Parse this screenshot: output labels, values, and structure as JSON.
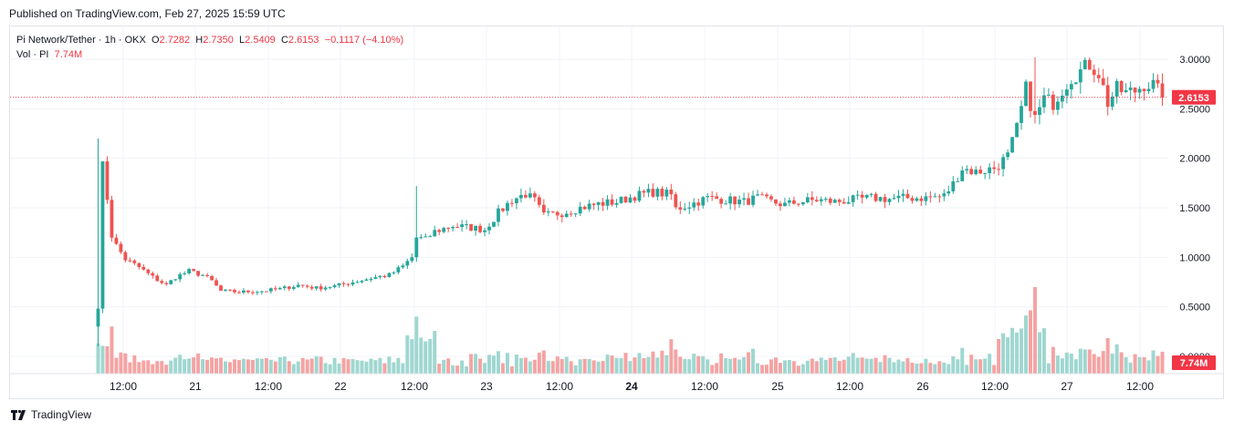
{
  "header": {
    "published": "Published on TradingView.com, Feb 27, 2025 15:59 UTC"
  },
  "legend": {
    "symbol": "Pi Network/Tether · 1h · OKX",
    "o_label": "O",
    "o_value": "2.7282",
    "h_label": "H",
    "h_value": "2.7350",
    "l_label": "L",
    "l_value": "2.5409",
    "c_label": "C",
    "c_value": "2.6153",
    "change": "−0.1117 (−4.10%)",
    "vol_label": "Vol · PI",
    "vol_value": "7.74M"
  },
  "footer": {
    "brand": "TradingView"
  },
  "colors": {
    "up": "#26a69a",
    "down": "#ef5350",
    "up_vol": "#9fd7d0",
    "down_vol": "#f5a3a3",
    "price_line": "#f23645"
  },
  "chart_data": {
    "type": "candlestick",
    "title": "Pi Network/Tether · 1h · OKX",
    "ylim": [
      0.0,
      3.2
    ],
    "y_ticks": [
      "3.0000",
      "2.5000",
      "2.0000",
      "1.5000",
      "1.0000",
      "0.5000",
      "0.0000"
    ],
    "y_tick_values": [
      3.0,
      2.5,
      2.0,
      1.5,
      1.0,
      0.5,
      0.0
    ],
    "x_ticks": [
      "12:00",
      "21",
      "12:00",
      "22",
      "12:00",
      "23",
      "12:00",
      "24",
      "12:00",
      "25",
      "12:00",
      "26",
      "12:00",
      "27",
      "12:00"
    ],
    "x_tick_bold": [
      "24"
    ],
    "last_price": 2.6153,
    "last_price_label": "2.6153",
    "last_volume_label": "7.74M",
    "closes_anchor": [
      [
        0,
        0.5
      ],
      [
        1,
        1.92
      ],
      [
        2,
        1.6
      ],
      [
        3,
        1.22
      ],
      [
        4,
        1.12
      ],
      [
        6,
        0.98
      ],
      [
        9,
        0.9
      ],
      [
        12,
        0.8
      ],
      [
        15,
        0.72
      ],
      [
        17,
        0.8
      ],
      [
        20,
        0.86
      ],
      [
        23,
        0.82
      ],
      [
        25,
        0.76
      ],
      [
        27,
        0.66
      ],
      [
        31,
        0.65
      ],
      [
        36,
        0.66
      ],
      [
        40,
        0.68
      ],
      [
        44,
        0.72
      ],
      [
        48,
        0.69
      ],
      [
        52,
        0.71
      ],
      [
        56,
        0.75
      ],
      [
        60,
        0.79
      ],
      [
        64,
        0.82
      ],
      [
        67,
        0.91
      ],
      [
        69,
        1.0
      ],
      [
        70,
        1.2
      ],
      [
        72,
        1.18
      ],
      [
        74,
        1.26
      ],
      [
        78,
        1.32
      ],
      [
        82,
        1.3
      ],
      [
        85,
        1.28
      ],
      [
        88,
        1.45
      ],
      [
        91,
        1.58
      ],
      [
        94,
        1.64
      ],
      [
        96,
        1.57
      ],
      [
        98,
        1.42
      ],
      [
        102,
        1.45
      ],
      [
        106,
        1.5
      ],
      [
        110,
        1.54
      ],
      [
        114,
        1.56
      ],
      [
        118,
        1.62
      ],
      [
        122,
        1.66
      ],
      [
        126,
        1.63
      ],
      [
        127,
        1.49
      ],
      [
        130,
        1.53
      ],
      [
        134,
        1.6
      ],
      [
        138,
        1.58
      ],
      [
        142,
        1.56
      ],
      [
        145,
        1.6
      ],
      [
        148,
        1.56
      ],
      [
        151,
        1.53
      ],
      [
        154,
        1.56
      ],
      [
        158,
        1.58
      ],
      [
        162,
        1.56
      ],
      [
        166,
        1.58
      ],
      [
        170,
        1.6
      ],
      [
        174,
        1.59
      ],
      [
        178,
        1.6
      ],
      [
        182,
        1.6
      ],
      [
        186,
        1.62
      ],
      [
        188,
        1.74
      ],
      [
        190,
        1.9
      ],
      [
        193,
        1.86
      ],
      [
        197,
        1.9
      ],
      [
        200,
        2.02
      ],
      [
        202,
        2.3
      ],
      [
        204,
        2.7
      ],
      [
        206,
        2.4
      ],
      [
        208,
        2.6
      ],
      [
        210,
        2.56
      ],
      [
        212,
        2.7
      ],
      [
        214,
        2.82
      ],
      [
        216,
        2.88
      ],
      [
        218,
        2.95
      ],
      [
        220,
        2.86
      ],
      [
        222,
        2.56
      ],
      [
        224,
        2.7
      ],
      [
        226,
        2.66
      ],
      [
        228,
        2.68
      ],
      [
        230,
        2.75
      ],
      [
        232,
        2.74
      ],
      [
        234,
        2.62
      ]
    ],
    "volume_ylim": [
      0,
      100
    ],
    "n_bars": 235
  }
}
